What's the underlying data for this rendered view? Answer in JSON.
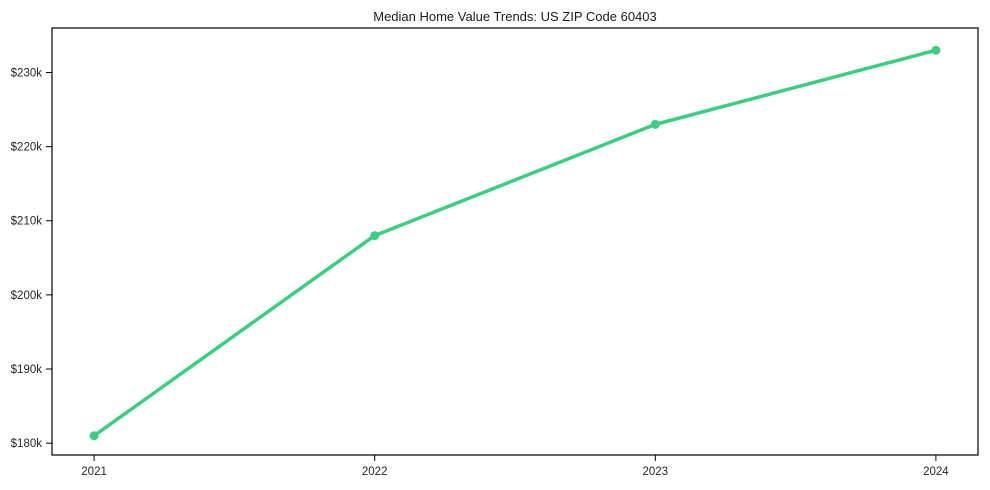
{
  "chart_data": {
    "type": "line",
    "title": "Median Home Value Trends: US ZIP Code 60403",
    "x": [
      2021,
      2022,
      2023,
      2024
    ],
    "values": [
      181,
      208,
      223,
      233
    ],
    "xlabel": "",
    "ylabel": "",
    "xtick_values": [
      2021,
      2022,
      2023,
      2024
    ],
    "xtick_labels": [
      "2021",
      "2022",
      "2023",
      "2024"
    ],
    "ytick_values": [
      180,
      190,
      200,
      210,
      220,
      230
    ],
    "ytick_labels": [
      "$180k",
      "$190k",
      "$200k",
      "$210k",
      "$220k",
      "$230k"
    ],
    "xlim": [
      2020.85,
      2024.15
    ],
    "ylim": [
      178.4,
      236.0
    ],
    "grid": false,
    "legend_position": "none",
    "colors": {
      "line": "#3bcd80",
      "marker": "#3bcd80",
      "text": "#262626",
      "spine": "#000000",
      "background": "#ffffff"
    }
  }
}
